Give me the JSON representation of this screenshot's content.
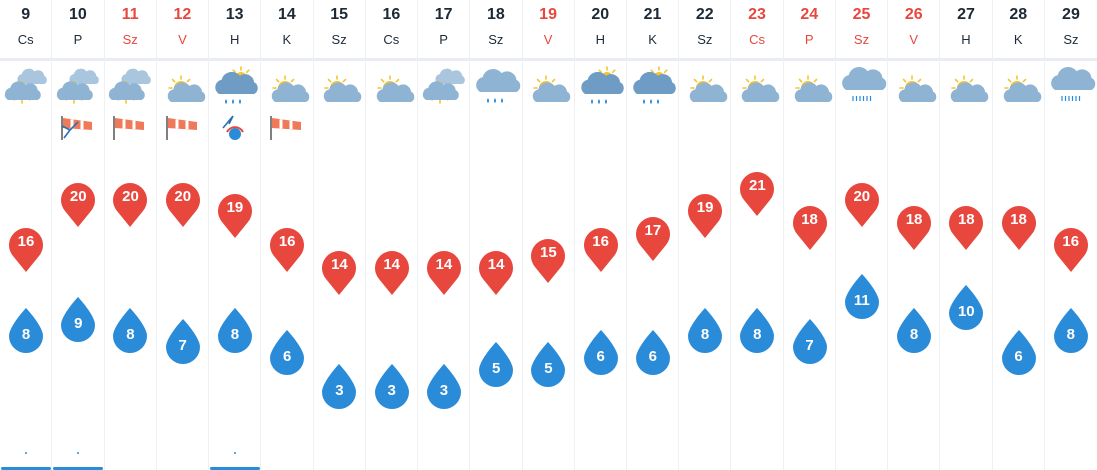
{
  "chart_data": {
    "type": "line",
    "days": [
      {
        "day": "9",
        "dow": "Cs",
        "weekend": false,
        "icon": "partly-cloudy-icon",
        "wind": "none",
        "max": 16,
        "min": 8,
        "precip": true
      },
      {
        "day": "10",
        "dow": "P",
        "weekend": false,
        "icon": "partly-cloudy-icon",
        "wind": "wind-turbine-icon",
        "max": 20,
        "min": 9,
        "precip": true
      },
      {
        "day": "11",
        "dow": "Sz",
        "weekend": true,
        "icon": "partly-cloudy-icon",
        "wind": "windsock-icon",
        "max": 20,
        "min": 8,
        "precip": false
      },
      {
        "day": "12",
        "dow": "V",
        "weekend": true,
        "icon": "partly-sunny-icon",
        "wind": "windsock-icon",
        "max": 20,
        "min": 7,
        "precip": false
      },
      {
        "day": "13",
        "dow": "H",
        "weekend": false,
        "icon": "sun-rain-cloud-icon",
        "wind": "storm-wind-icon",
        "max": 19,
        "min": 8,
        "precip": true
      },
      {
        "day": "14",
        "dow": "K",
        "weekend": false,
        "icon": "partly-sunny-icon",
        "wind": "windsock-icon",
        "max": 16,
        "min": 6,
        "precip": false
      },
      {
        "day": "15",
        "dow": "Sz",
        "weekend": false,
        "icon": "partly-sunny-icon",
        "wind": "none",
        "max": 14,
        "min": 3,
        "precip": false
      },
      {
        "day": "16",
        "dow": "Cs",
        "weekend": false,
        "icon": "partly-sunny-icon",
        "wind": "none",
        "max": 14,
        "min": 3,
        "precip": false
      },
      {
        "day": "17",
        "dow": "P",
        "weekend": false,
        "icon": "partly-cloudy-icon",
        "wind": "none",
        "max": 14,
        "min": 3,
        "precip": false
      },
      {
        "day": "18",
        "dow": "Sz",
        "weekend": false,
        "icon": "rain-cloud-icon",
        "wind": "none",
        "max": 14,
        "min": 5,
        "precip": false
      },
      {
        "day": "19",
        "dow": "V",
        "weekend": true,
        "icon": "partly-sunny-icon",
        "wind": "none",
        "max": 15,
        "min": 5,
        "precip": false
      },
      {
        "day": "20",
        "dow": "H",
        "weekend": false,
        "icon": "sun-rain-cloud-icon",
        "wind": "none",
        "max": 16,
        "min": 6,
        "precip": false
      },
      {
        "day": "21",
        "dow": "K",
        "weekend": false,
        "icon": "sun-rain-cloud-icon",
        "wind": "none",
        "max": 17,
        "min": 6,
        "precip": false
      },
      {
        "day": "22",
        "dow": "Sz",
        "weekend": false,
        "icon": "partly-sunny-icon",
        "wind": "none",
        "max": 19,
        "min": 8,
        "precip": false
      },
      {
        "day": "23",
        "dow": "Cs",
        "weekend": true,
        "icon": "partly-sunny-icon",
        "wind": "none",
        "max": 21,
        "min": 8,
        "precip": false
      },
      {
        "day": "24",
        "dow": "P",
        "weekend": true,
        "icon": "partly-sunny-icon",
        "wind": "none",
        "max": 18,
        "min": 7,
        "precip": false
      },
      {
        "day": "25",
        "dow": "Sz",
        "weekend": true,
        "icon": "heavy-rain-cloud-icon",
        "wind": "none",
        "max": 20,
        "min": 11,
        "precip": false
      },
      {
        "day": "26",
        "dow": "V",
        "weekend": true,
        "icon": "partly-sunny-icon",
        "wind": "none",
        "max": 18,
        "min": 8,
        "precip": false
      },
      {
        "day": "27",
        "dow": "H",
        "weekend": false,
        "icon": "partly-sunny-icon",
        "wind": "none",
        "max": 18,
        "min": 10,
        "precip": false
      },
      {
        "day": "28",
        "dow": "K",
        "weekend": false,
        "icon": "partly-sunny-icon",
        "wind": "none",
        "max": 18,
        "min": 6,
        "precip": false
      },
      {
        "day": "29",
        "dow": "Sz",
        "weekend": false,
        "icon": "heavy-rain-cloud-icon",
        "wind": "none",
        "max": 16,
        "min": 8,
        "precip": false
      }
    ],
    "ylim": [
      3,
      21
    ],
    "grid": false,
    "colors": {
      "max": "#e8473e",
      "min": "#2a8bd9",
      "weekend_text": "#e8473e",
      "text": "#1d2a36",
      "cloud": "#8fb4d3",
      "sun": "#f6c42b"
    }
  }
}
